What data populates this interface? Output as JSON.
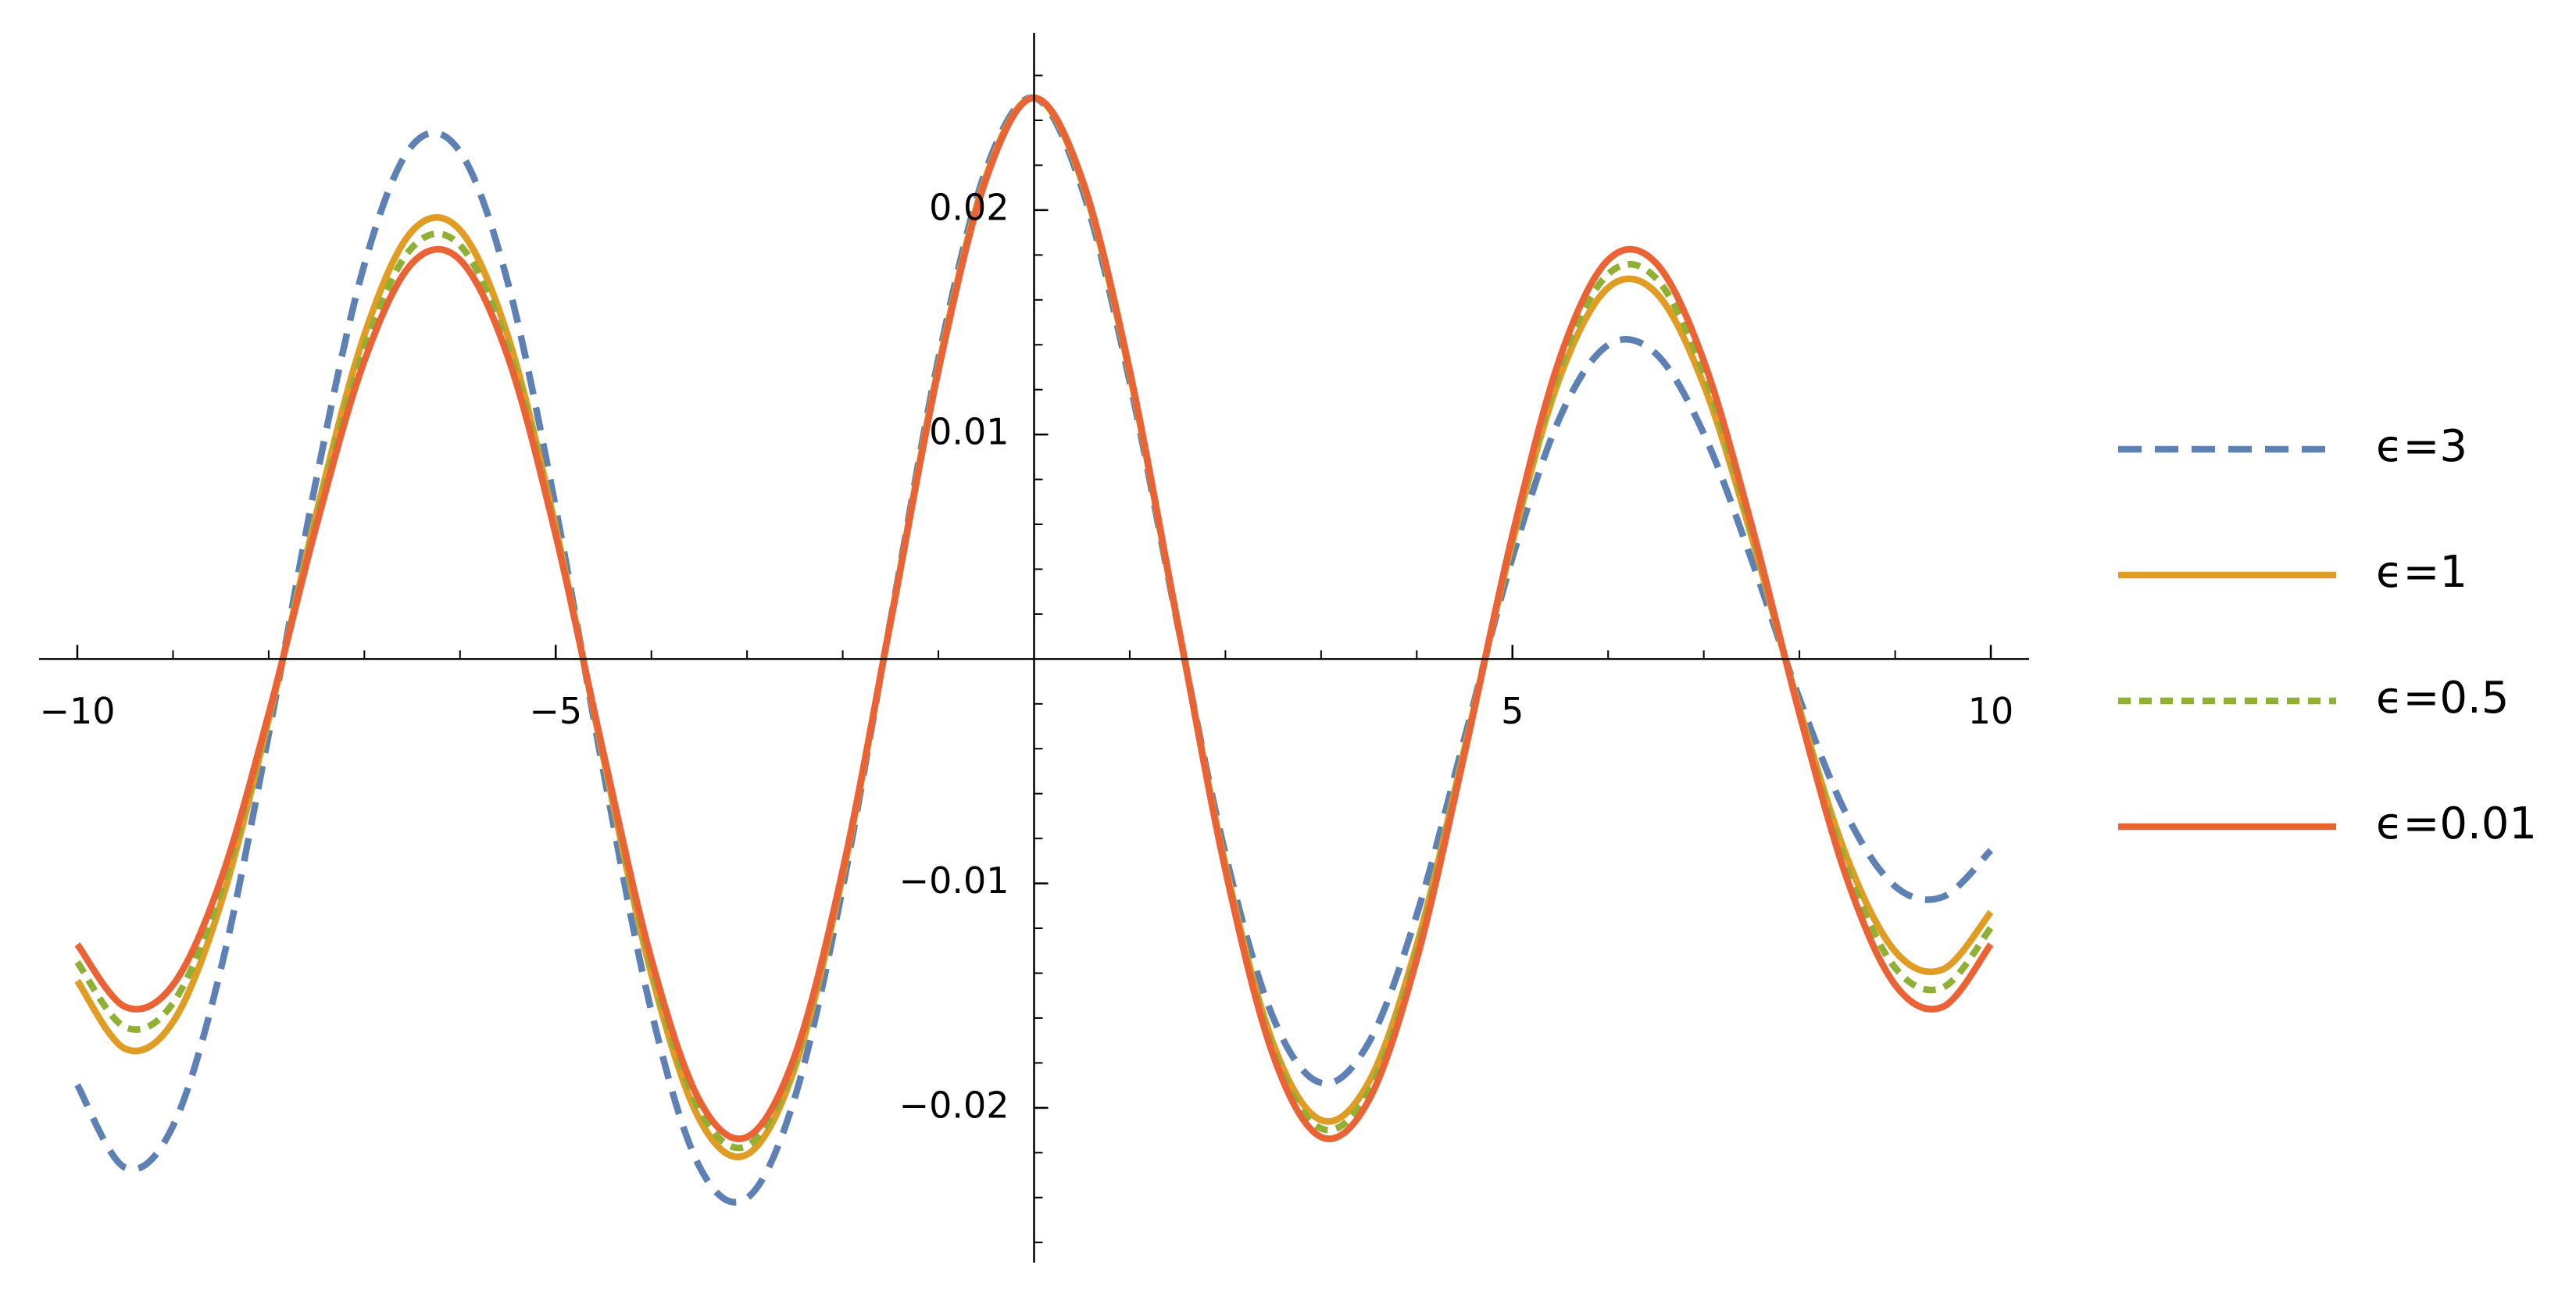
{
  "chart_data": {
    "type": "line",
    "x": [
      -10,
      -9.5,
      -9,
      -8.5,
      -8,
      -7.5,
      -7,
      -6.5,
      -6,
      -5.5,
      -5,
      -4.5,
      -4,
      -3.5,
      -3,
      -2.5,
      -2,
      -1.5,
      -1,
      -0.5,
      0,
      0.5,
      1,
      1.5,
      2,
      2.5,
      3,
      3.5,
      4,
      4.5,
      5,
      5.5,
      6,
      6.5,
      7,
      7.5,
      8,
      8.5,
      9,
      9.5,
      10
    ],
    "series": [
      {
        "name": "ϵ=3",
        "color": "#5e81b5",
        "dash": "dashed",
        "values": [
          -0.01898,
          -0.02267,
          -0.02081,
          -0.01382,
          -0.00336,
          0.00805,
          0.01757,
          0.02288,
          0.0226,
          0.01677,
          0.00674,
          -0.00504,
          -0.0157,
          -0.0226,
          -0.02402,
          -0.01953,
          -0.01019,
          0.00174,
          0.01337,
          0.02183,
          0.025,
          0.02098,
          0.01235,
          0.00154,
          -0.00869,
          -0.01599,
          -0.01889,
          -0.01708,
          -0.0114,
          -0.00352,
          0.00452,
          0.0108,
          0.01399,
          0.0136,
          0.01004,
          0.00442,
          -0.00177,
          -0.007,
          -0.01013,
          -0.0106,
          -0.00853
        ]
      },
      {
        "name": "ϵ=1",
        "color": "#e19c24",
        "dash": "solid",
        "values": [
          -0.01434,
          -0.01737,
          -0.01617,
          -0.0109,
          -0.00269,
          0.00652,
          0.01444,
          0.01907,
          0.01911,
          0.01438,
          0.00586,
          -0.00444,
          -0.01404,
          -0.02049,
          -0.02208,
          -0.01821,
          -0.00964,
          0.00167,
          0.01301,
          0.02153,
          0.025,
          0.02127,
          0.0127,
          0.00161,
          -0.00919,
          -0.01715,
          -0.02055,
          -0.01884,
          -0.01275,
          -0.00399,
          0.0052,
          0.0126,
          0.01654,
          0.01632,
          0.01221,
          0.00545,
          -0.00222,
          -0.00889,
          -0.01303,
          -0.01383,
          -0.01128
        ]
      },
      {
        "name": "ϵ=0.5",
        "color": "#8fb032",
        "dash": "dotted",
        "values": [
          -0.01351,
          -0.01641,
          -0.01533,
          -0.01035,
          -0.00256,
          0.00623,
          0.01385,
          0.01834,
          0.01843,
          0.01391,
          0.00569,
          -0.00433,
          -0.01371,
          -0.02007,
          -0.02169,
          -0.01794,
          -0.00952,
          0.00165,
          0.01293,
          0.02146,
          0.025,
          0.02134,
          0.01277,
          0.00163,
          -0.0093,
          -0.01741,
          -0.02092,
          -0.01924,
          -0.01306,
          -0.0041,
          0.00536,
          0.01302,
          0.01715,
          0.01697,
          0.01273,
          0.0057,
          -0.00233,
          -0.00935,
          -0.01376,
          -0.01464,
          -0.01198
        ]
      },
      {
        "name": "ϵ=0.01",
        "color": "#eb6235",
        "dash": "solid",
        "values": [
          -0.01272,
          -0.0155,
          -0.01452,
          -0.00984,
          -0.00244,
          0.00596,
          0.01328,
          0.01764,
          0.01778,
          0.01346,
          0.00552,
          -0.00421,
          -0.01338,
          -0.01965,
          -0.0213,
          -0.01767,
          -0.00941,
          0.00164,
          0.01285,
          0.0214,
          0.025,
          0.0214,
          0.01285,
          0.00164,
          -0.00941,
          -0.01767,
          -0.0213,
          -0.01965,
          -0.01338,
          -0.00421,
          0.00552,
          0.01346,
          0.01778,
          0.01764,
          0.01328,
          0.00596,
          -0.00244,
          -0.00984,
          -0.01452,
          -0.0155,
          -0.01272
        ]
      }
    ],
    "xlim": [
      -10.4,
      10.4
    ],
    "ylim": [
      -0.0269,
      0.0279
    ],
    "xticks": [
      {
        "value": -10,
        "label": "−10"
      },
      {
        "value": -5,
        "label": "−5"
      },
      5,
      10
    ],
    "yticks": [
      {
        "value": -0.02,
        "label": "−0.02"
      },
      {
        "value": -0.01,
        "label": "−0.01"
      },
      0.01,
      0.02
    ],
    "xminorticks": [
      -9,
      -8,
      -7,
      -6,
      -4,
      -3,
      -2,
      -1,
      1,
      2,
      3,
      4,
      6,
      7,
      8,
      9
    ],
    "yminorticks": [
      -0.026,
      -0.024,
      -0.022,
      -0.018,
      -0.016,
      -0.014,
      -0.012,
      -0.008,
      -0.006,
      -0.004,
      -0.002,
      0.002,
      0.004,
      0.006,
      0.008,
      0.012,
      0.014,
      0.016,
      0.018,
      0.022,
      0.024,
      0.026
    ],
    "legend": "right"
  }
}
